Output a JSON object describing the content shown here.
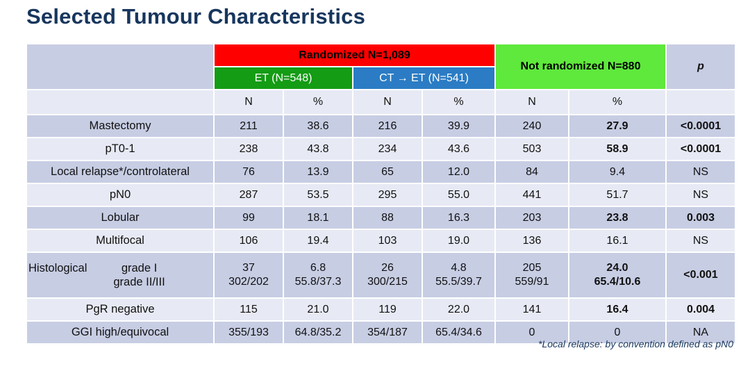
{
  "title": "Selected Tumour Characteristics",
  "footnote": "*Local relapse: by convention defined as pN0",
  "colors": {
    "title_navy": "#17365d",
    "randomized_red": "#ff0000",
    "et_green": "#149c14",
    "ct_et_blue": "#2b7cc4",
    "not_randomized_lime": "#5fe93c",
    "row_dark": "#c7cde3",
    "row_light": "#e7eaf4"
  },
  "header": {
    "randomized": "Randomized N=1,089",
    "not_randomized": "Not randomized N=880",
    "et": "ET (N=548)",
    "ct_et": "CT → ET (N=541)",
    "p": "p",
    "subcols": [
      "N",
      "%",
      "N",
      "%",
      "N",
      "%"
    ]
  },
  "rows": [
    {
      "label": "Mastectomy",
      "cells": [
        "211",
        "38.6",
        "216",
        "39.9",
        "240",
        "27.9",
        "<0.0001"
      ],
      "bold": [
        5,
        6
      ]
    },
    {
      "label": "pT0-1",
      "cells": [
        "238",
        "43.8",
        "234",
        "43.6",
        "503",
        "58.9",
        "<0.0001"
      ],
      "bold": [
        5,
        6
      ]
    },
    {
      "label": "Local relapse*/controlateral",
      "cells": [
        "76",
        "13.9",
        "65",
        "12.0",
        "84",
        "9.4",
        "NS"
      ],
      "bold": []
    },
    {
      "label": "pN0",
      "cells": [
        "287",
        "53.5",
        "295",
        "55.0",
        "441",
        "51.7",
        "NS"
      ],
      "bold": []
    },
    {
      "label": "Lobular",
      "cells": [
        "99",
        "18.1",
        "88",
        "16.3",
        "203",
        "23.8",
        "0.003"
      ],
      "bold": [
        5,
        6
      ]
    },
    {
      "label": "Multifocal",
      "cells": [
        "106",
        "19.4",
        "103",
        "19.0",
        "136",
        "16.1",
        "NS"
      ],
      "bold": []
    },
    {
      "label": "Histological",
      "sublabel": "grade I\ngrade II/III",
      "tall": true,
      "cells": [
        "37\n302/202",
        "6.8\n55.8/37.3",
        "26\n300/215",
        "4.8\n55.5/39.7",
        "205\n559/91",
        "24.0\n65.4/10.6",
        "<0.001"
      ],
      "bold": [
        5,
        6
      ]
    },
    {
      "label": "PgR negative",
      "cells": [
        "115",
        "21.0",
        "119",
        "22.0",
        "141",
        "16.4",
        "0.004"
      ],
      "bold": [
        5,
        6
      ]
    },
    {
      "label": "GGI high/equivocal",
      "cells": [
        "355/193",
        "64.8/35.2",
        "354/187",
        "65.4/34.6",
        "0",
        "0",
        "NA"
      ],
      "bold": []
    }
  ]
}
